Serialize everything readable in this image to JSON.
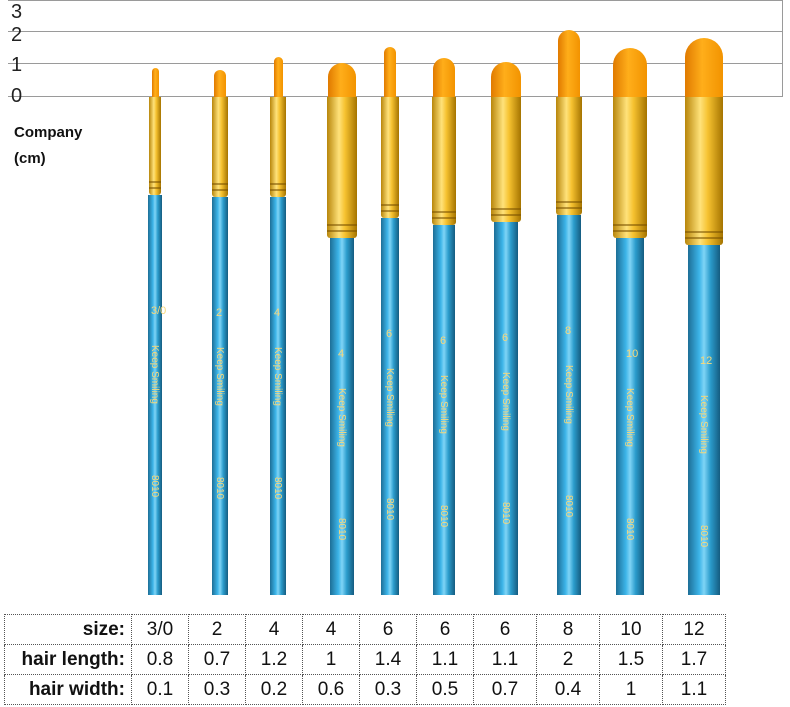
{
  "scale": {
    "ticks": [
      "3",
      "2",
      "1",
      "0"
    ]
  },
  "unit_label": {
    "line1": "Company",
    "line2": "(cm)"
  },
  "brush_imprint": {
    "brand": "Keep Smiling",
    "model": "8010"
  },
  "colors": {
    "handle": "#2b9ccc",
    "ferrule": "#f6c230",
    "hair": "#ffae1a"
  },
  "brushes": [
    {
      "size": "3/0"
    },
    {
      "size": "2"
    },
    {
      "size": "4"
    },
    {
      "size": "4"
    },
    {
      "size": "6"
    },
    {
      "size": "6"
    },
    {
      "size": "6"
    },
    {
      "size": "8"
    },
    {
      "size": "10"
    },
    {
      "size": "12"
    }
  ],
  "table": {
    "rows": [
      {
        "label": "size:",
        "values": [
          "3/0",
          "2",
          "4",
          "4",
          "6",
          "6",
          "6",
          "8",
          "10",
          "12"
        ]
      },
      {
        "label": "hair length:",
        "values": [
          "0.8",
          "0.7",
          "1.2",
          "1",
          "1.4",
          "1.1",
          "1.1",
          "2",
          "1.5",
          "1.7"
        ]
      },
      {
        "label": "hair width:",
        "values": [
          "0.1",
          "0.3",
          "0.2",
          "0.6",
          "0.3",
          "0.5",
          "0.7",
          "0.4",
          "1",
          "1.1"
        ]
      }
    ]
  }
}
